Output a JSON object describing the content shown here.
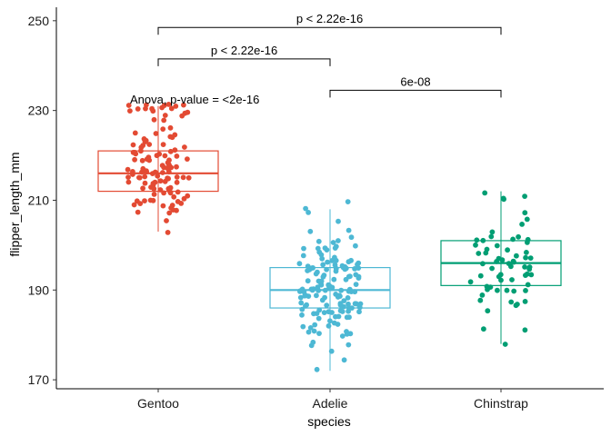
{
  "chart_data": {
    "type": "boxplot_with_jitter",
    "title": "",
    "xlabel": "species",
    "ylabel": "flipper_length_mm",
    "ylim": [
      168,
      253
    ],
    "yticks": [
      170,
      190,
      210,
      230,
      250
    ],
    "categories": [
      "Gentoo",
      "Adelie",
      "Chinstrap"
    ],
    "groups": [
      {
        "name": "Gentoo",
        "color": "#e34a33",
        "box": {
          "min": 203,
          "q1": 212,
          "median": 216,
          "q3": 221,
          "max": 231
        },
        "points": [
          203,
          205,
          207,
          207,
          208,
          208,
          208,
          209,
          209,
          209,
          209,
          209,
          210,
          210,
          210,
          210,
          210,
          210,
          211,
          211,
          211,
          212,
          212,
          212,
          212,
          212,
          213,
          213,
          213,
          213,
          213,
          213,
          214,
          214,
          214,
          214,
          214,
          214,
          214,
          215,
          215,
          215,
          215,
          215,
          215,
          215,
          215,
          215,
          215,
          216,
          216,
          216,
          216,
          216,
          216,
          216,
          216,
          217,
          217,
          217,
          217,
          217,
          217,
          217,
          218,
          218,
          218,
          218,
          219,
          219,
          219,
          219,
          219,
          219,
          220,
          220,
          220,
          220,
          220,
          220,
          221,
          221,
          221,
          221,
          221,
          222,
          222,
          222,
          222,
          222,
          222,
          223,
          223,
          224,
          224,
          224,
          225,
          225,
          225,
          226,
          226,
          228,
          228,
          229,
          229,
          229,
          230,
          230,
          230,
          230,
          230,
          230,
          230,
          231,
          231,
          231,
          231,
          231,
          231,
          231
        ]
      },
      {
        "name": "Adelie",
        "color": "#4db8d4",
        "box": {
          "min": 172,
          "q1": 186,
          "median": 190,
          "q3": 195,
          "max": 208
        },
        "points": [
          172,
          174,
          176,
          178,
          178,
          178,
          180,
          180,
          180,
          180,
          181,
          181,
          181,
          182,
          182,
          182,
          182,
          182,
          183,
          183,
          184,
          184,
          184,
          184,
          184,
          184,
          185,
          185,
          185,
          185,
          185,
          185,
          185,
          185,
          185,
          186,
          186,
          186,
          186,
          186,
          186,
          186,
          186,
          187,
          187,
          187,
          187,
          187,
          187,
          187,
          187,
          187,
          188,
          188,
          188,
          188,
          188,
          188,
          189,
          189,
          189,
          189,
          189,
          189,
          189,
          190,
          190,
          190,
          190,
          190,
          190,
          190,
          190,
          190,
          190,
          190,
          190,
          190,
          190,
          190,
          190,
          190,
          191,
          191,
          191,
          191,
          191,
          191,
          191,
          192,
          192,
          192,
          192,
          192,
          193,
          193,
          193,
          193,
          193,
          193,
          193,
          194,
          194,
          194,
          194,
          195,
          195,
          195,
          195,
          195,
          195,
          195,
          195,
          195,
          195,
          195,
          195,
          195,
          195,
          196,
          196,
          196,
          196,
          196,
          196,
          196,
          197,
          197,
          197,
          197,
          197,
          198,
          198,
          198,
          199,
          199,
          199,
          199,
          199,
          200,
          200,
          201,
          201,
          201,
          202,
          203,
          203,
          205,
          207,
          208,
          210
        ]
      },
      {
        "name": "Chinstrap",
        "color": "#009e73",
        "box": {
          "min": 178,
          "q1": 191,
          "median": 196,
          "q3": 201,
          "max": 212
        },
        "points": [
          178,
          181,
          181,
          185,
          187,
          187,
          187,
          187,
          188,
          189,
          190,
          190,
          190,
          190,
          190,
          191,
          191,
          191,
          192,
          192,
          192,
          193,
          193,
          193,
          193,
          193,
          194,
          195,
          195,
          195,
          195,
          195,
          196,
          196,
          196,
          196,
          196,
          197,
          197,
          197,
          197,
          198,
          198,
          198,
          198,
          199,
          199,
          200,
          200,
          201,
          201,
          201,
          201,
          201,
          202,
          202,
          203,
          205,
          206,
          207,
          210,
          210,
          211,
          212
        ]
      }
    ],
    "annotations": {
      "global_test": "Anova, p-value = <2e-16",
      "comparisons": [
        {
          "from": "Gentoo",
          "to": "Chinstrap",
          "label": "p < 2.22e-16",
          "y": 248.5
        },
        {
          "from": "Gentoo",
          "to": "Adelie",
          "label": "p < 2.22e-16",
          "y": 241.5
        },
        {
          "from": "Adelie",
          "to": "Chinstrap",
          "label": "6e-08",
          "y": 234.5
        }
      ]
    }
  }
}
